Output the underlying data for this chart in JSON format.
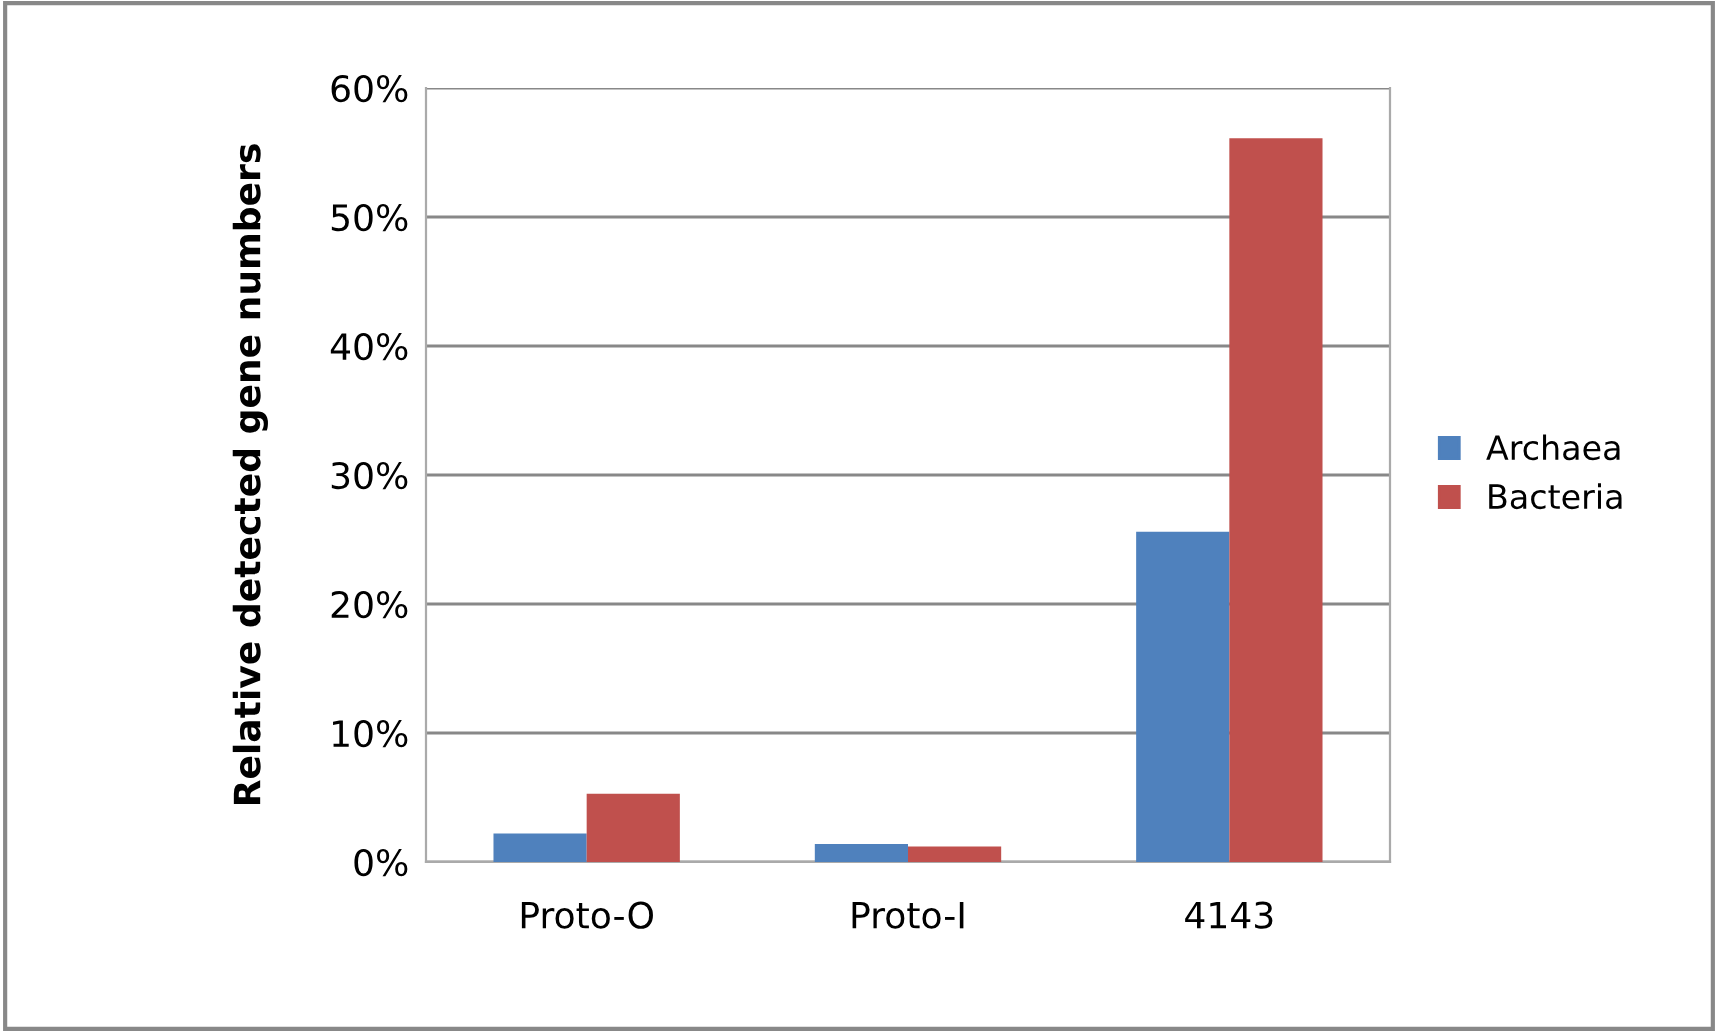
{
  "chart_data": {
    "type": "bar",
    "ylabel": "Relative detected gene numbers",
    "categories": [
      "Proto-O",
      "Proto-I",
      "4143"
    ],
    "series": [
      {
        "name": "Archaea",
        "color": "#4f81bd",
        "values": [
          2.2,
          1.4,
          25.6
        ]
      },
      {
        "name": "Bacteria",
        "color": "#c0504d",
        "values": [
          5.3,
          1.2,
          56.1
        ]
      }
    ],
    "ylim": [
      0,
      60
    ],
    "yticks": [
      {
        "value": 0,
        "label": "0%"
      },
      {
        "value": 10,
        "label": "10%"
      },
      {
        "value": 20,
        "label": "20%"
      },
      {
        "value": 30,
        "label": "30%"
      },
      {
        "value": 40,
        "label": "40%"
      },
      {
        "value": 50,
        "label": "50%"
      },
      {
        "value": 60,
        "label": "60%"
      }
    ],
    "grid": "y",
    "legend": "right"
  }
}
